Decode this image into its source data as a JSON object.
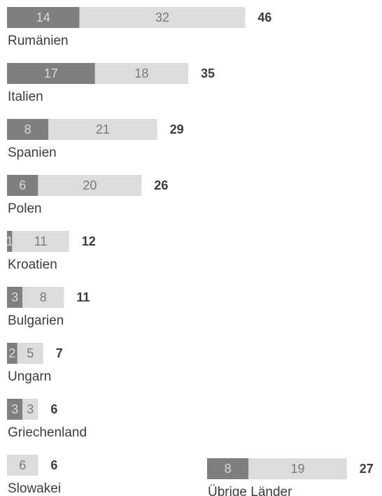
{
  "chart_data": {
    "type": "bar",
    "stacked": true,
    "orientation": "horizontal",
    "categories": [
      "Rumänien",
      "Italien",
      "Spanien",
      "Polen",
      "Kroatien",
      "Bulgarien",
      "Ungarn",
      "Griechenland",
      "Slowakei",
      "Übrige Länder"
    ],
    "series": [
      {
        "values": [
          14,
          17,
          8,
          6,
          1,
          3,
          2,
          3,
          0,
          8
        ],
        "color": "#7f7f7f"
      },
      {
        "values": [
          32,
          18,
          21,
          20,
          11,
          8,
          5,
          3,
          6,
          19
        ],
        "color": "#dcdcdc"
      }
    ],
    "totals": [
      46,
      35,
      29,
      26,
      12,
      11,
      7,
      6,
      6,
      27
    ],
    "title": "",
    "xlabel": "",
    "ylabel": "",
    "grid": false,
    "legend": "none"
  }
}
